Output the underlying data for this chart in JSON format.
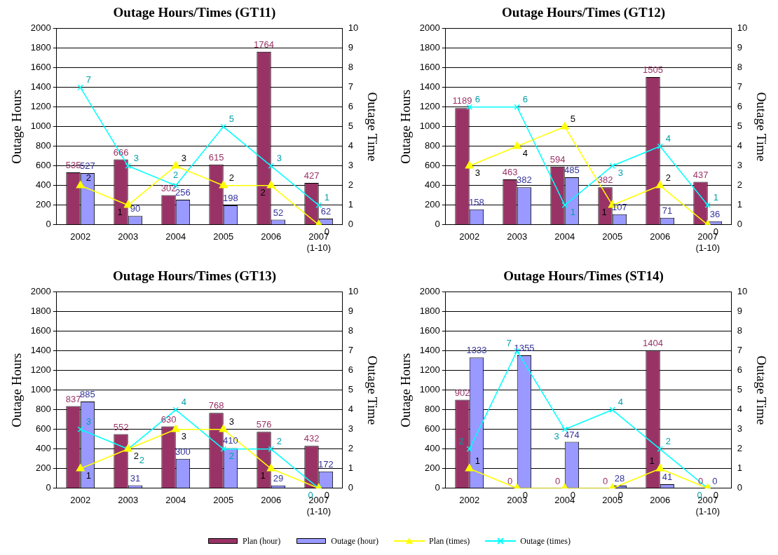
{
  "chart_data": [
    {
      "type": "bar",
      "title": "Outage Hours/Times (GT11)",
      "ylabel": "Outage Hours",
      "y2label": "Outage Time",
      "categories": [
        "2002",
        "2003",
        "2004",
        "2005",
        "2006",
        "2007\n(1-10)"
      ],
      "series": [
        {
          "color": "#993366",
          "values": [
            535,
            666,
            302,
            615,
            1764,
            427
          ]
        },
        {
          "color": "#9999ff",
          "values": [
            527,
            90,
            256,
            198,
            52,
            62
          ]
        },
        {
          "type": "line",
          "axis": "y2",
          "marker": "triangle",
          "color": "#ffff00",
          "values": [
            2,
            1,
            3,
            2,
            2,
            0
          ]
        },
        {
          "type": "line",
          "axis": "y2",
          "marker": "cross",
          "color": "#00ffff",
          "values": [
            7,
            3,
            2,
            5,
            3,
            1
          ]
        }
      ],
      "ylim": [
        0,
        2000
      ],
      "yticks": [
        0,
        200,
        400,
        600,
        800,
        1000,
        1200,
        1400,
        1600,
        1800,
        2000
      ],
      "y2lim": [
        0,
        10
      ],
      "y2ticks": [
        0,
        1,
        2,
        3,
        4,
        5,
        6,
        7,
        8,
        9,
        10
      ],
      "grid": "y",
      "legend": false,
      "data_labels": true
    },
    {
      "type": "bar",
      "title": "Outage Hours/Times (GT12)",
      "ylabel": "Outage Hours",
      "y2label": "Outage Time",
      "categories": [
        "2002",
        "2003",
        "2004",
        "2005",
        "2006",
        "2007\n(1-10)"
      ],
      "series": [
        {
          "color": "#993366",
          "values": [
            1189,
            463,
            594,
            382,
            1505,
            437
          ]
        },
        {
          "color": "#9999ff",
          "values": [
            158,
            382,
            485,
            107,
            71,
            36
          ]
        },
        {
          "type": "line",
          "axis": "y2",
          "marker": "triangle",
          "color": "#ffff00",
          "values": [
            3,
            4,
            5,
            1,
            2,
            0
          ]
        },
        {
          "type": "line",
          "axis": "y2",
          "marker": "cross",
          "color": "#00ffff",
          "values": [
            6,
            6,
            1,
            3,
            4,
            1
          ]
        }
      ],
      "ylim": [
        0,
        2000
      ],
      "yticks": [
        0,
        200,
        400,
        600,
        800,
        1000,
        1200,
        1400,
        1600,
        1800,
        2000
      ],
      "y2lim": [
        0,
        10
      ],
      "y2ticks": [
        0,
        1,
        2,
        3,
        4,
        5,
        6,
        7,
        8,
        9,
        10
      ],
      "grid": "y",
      "legend": false,
      "data_labels": true
    },
    {
      "type": "bar",
      "title": "Outage Hours/Times (GT13)",
      "ylabel": "Outage Hours",
      "y2label": "Outage Time",
      "categories": [
        "2002",
        "2003",
        "2004",
        "2005",
        "2006",
        "2007\n(1-10)"
      ],
      "series": [
        {
          "color": "#993366",
          "values": [
            837,
            552,
            630,
            768,
            576,
            432
          ]
        },
        {
          "color": "#9999ff",
          "values": [
            885,
            31,
            300,
            410,
            29,
            172
          ]
        },
        {
          "type": "line",
          "axis": "y2",
          "marker": "triangle",
          "color": "#ffff00",
          "values": [
            1,
            2,
            3,
            3,
            1,
            0
          ]
        },
        {
          "type": "line",
          "axis": "y2",
          "marker": "cross",
          "color": "#00ffff",
          "values": [
            3,
            2,
            4,
            2,
            2,
            0
          ]
        }
      ],
      "ylim": [
        0,
        2000
      ],
      "yticks": [
        0,
        200,
        400,
        600,
        800,
        1000,
        1200,
        1400,
        1600,
        1800,
        2000
      ],
      "y2lim": [
        0,
        10
      ],
      "y2ticks": [
        0,
        1,
        2,
        3,
        4,
        5,
        6,
        7,
        8,
        9,
        10
      ],
      "grid": "y",
      "legend": false,
      "data_labels": true
    },
    {
      "type": "bar",
      "title": "Outage Hours/Times (ST14)",
      "ylabel": "Outage Hours",
      "y2label": "Outage Time",
      "categories": [
        "2002",
        "2003",
        "2004",
        "2005",
        "2006",
        "2007\n(1-10)"
      ],
      "series": [
        {
          "name": "Plan (hour)",
          "color": "#993366",
          "values": [
            902,
            0,
            0,
            0,
            1404,
            0
          ]
        },
        {
          "name": "Outage (hour)",
          "color": "#9999ff",
          "values": [
            1333,
            1355,
            474,
            28,
            41,
            0
          ]
        },
        {
          "name": "Plan (times)",
          "type": "line",
          "axis": "y2",
          "marker": "triangle",
          "color": "#ffff00",
          "values": [
            1,
            0,
            0,
            0,
            1,
            0
          ]
        },
        {
          "name": "Outage (times)",
          "type": "line",
          "axis": "y2",
          "marker": "cross",
          "color": "#00ffff",
          "values": [
            2,
            7,
            3,
            4,
            2,
            0
          ]
        }
      ],
      "ylim": [
        0,
        2000
      ],
      "yticks": [
        0,
        200,
        400,
        600,
        800,
        1000,
        1200,
        1400,
        1600,
        1800,
        2000
      ],
      "y2lim": [
        0,
        10
      ],
      "y2ticks": [
        0,
        1,
        2,
        3,
        4,
        5,
        6,
        7,
        8,
        9,
        10
      ],
      "grid": "y",
      "legend": "bottom",
      "data_labels": true
    }
  ]
}
